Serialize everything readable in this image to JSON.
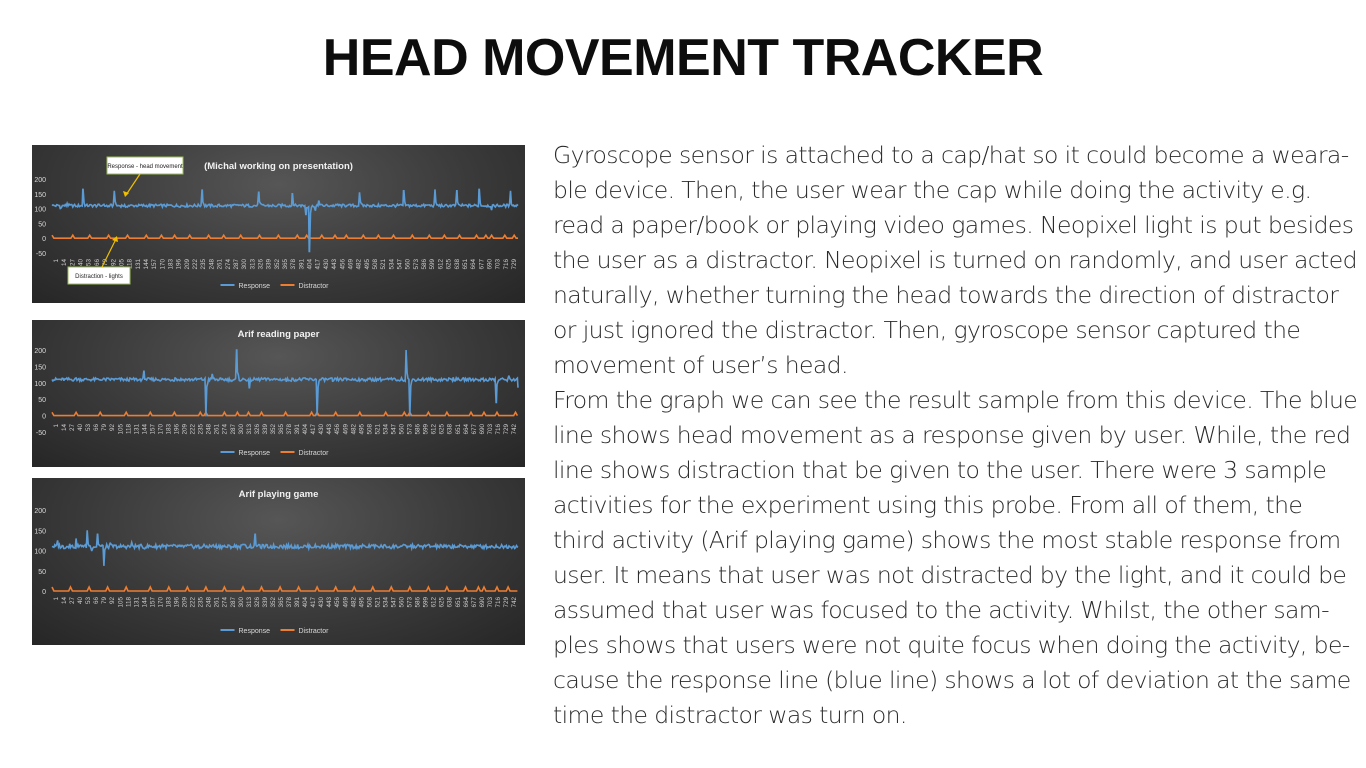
{
  "slide": {
    "title": "HEAD MOVEMENT TRACKER",
    "paragraph_lines": [
      "Gyroscope sensor is attached to a cap/hat so it could become a weara-",
      "ble device. Then, the user wear the cap while doing the activity e.g.",
      "read a paper/book or playing video games. Neopixel light is put besides",
      "the user as a distractor. Neopixel is turned on randomly, and user acted",
      "naturally, whether turning the head towards the direction of distractor",
      "or just ignored the distractor. Then, gyroscope sensor captured the",
      "movement of user’s head.",
      "From the graph we can see the result sample from this device. The blue",
      "line shows head movement as a response given by user. While, the red",
      "line shows distraction that be given to the user. There were 3 sample",
      "activities for the experiment using this probe. From all of them, the",
      "third activity (Arif playing game) shows the most stable response from",
      "user. It means that user was not distracted by the light, and it could be",
      "assumed that user was focused to the activity. Whilst, the other sam-",
      "ples shows that users were not quite focus when doing the activity, be-",
      "cause the response line (blue line) shows a lot of deviation at the same",
      "time the distractor was turn on."
    ]
  },
  "chart_data": [
    {
      "type": "line",
      "title": "(Michal working on presentation)",
      "yticks": [
        200,
        150,
        100,
        50,
        0,
        -50
      ],
      "ylim": [
        -50,
        200
      ],
      "x_range": [
        1,
        742
      ],
      "xtick_labels": [
        "1",
        "14",
        "27",
        "40",
        "53",
        "66",
        "79",
        "92",
        "105",
        "118",
        "131",
        "144",
        "157",
        "170",
        "183",
        "196",
        "209",
        "222",
        "235",
        "248",
        "261",
        "274",
        "287",
        "300",
        "313",
        "326",
        "339",
        "352",
        "365",
        "378",
        "391",
        "404",
        "417",
        "430",
        "443",
        "456",
        "469",
        "482",
        "495",
        "508",
        "521",
        "534",
        "547",
        "560",
        "573",
        "586",
        "599",
        "612",
        "625",
        "638",
        "651",
        "664",
        "677",
        "690",
        "703",
        "716",
        "729"
      ],
      "series": [
        {
          "name": "Response",
          "color": "#5b9bd5",
          "baseline": 110,
          "x": [
            1,
            14,
            25,
            40,
            50,
            82,
            90,
            100,
            112,
            118,
            130,
            160,
            200,
            235,
            240,
            262,
            275,
            300,
            330,
            355,
            370,
            383,
            395,
            405,
            410,
            415,
            420,
            425,
            440,
            455,
            470,
            490,
            505,
            515,
            530,
            560,
            600,
            610,
            625,
            645,
            655,
            680,
            700,
            718,
            730,
            742
          ],
          "y": [
            110,
            100,
            118,
            108,
            165,
            112,
            106,
            160,
            112,
            105,
            110,
            112,
            108,
            110,
            162,
            108,
            110,
            112,
            155,
            108,
            110,
            150,
            112,
            80,
            -45,
            110,
            95,
            125,
            108,
            115,
            110,
            155,
            110,
            108,
            112,
            160,
            112,
            165,
            108,
            160,
            110,
            165,
            95,
            110,
            160,
            110
          ]
        },
        {
          "name": "Distractor",
          "color": "#ed7d31",
          "baseline": 0,
          "spike_x": [
            1,
            35,
            60,
            90,
            120,
            150,
            175,
            195,
            220,
            250,
            275,
            300,
            330,
            360,
            390,
            405,
            430,
            450,
            470,
            495,
            520,
            545,
            575,
            600,
            625,
            650,
            675,
            690,
            700,
            720,
            735
          ],
          "spike_value": 10
        }
      ],
      "legend": {
        "placement": "bottom",
        "entries": [
          "Response",
          "Distractor"
        ]
      },
      "annotations": [
        "Response - head movement",
        "Distraction - lights"
      ]
    },
    {
      "type": "line",
      "title": "Arif reading paper",
      "yticks": [
        200,
        150,
        100,
        50,
        0,
        -50
      ],
      "ylim": [
        -50,
        200
      ],
      "x_range": [
        1,
        755
      ],
      "xtick_labels": [
        "1",
        "14",
        "27",
        "40",
        "53",
        "66",
        "79",
        "92",
        "105",
        "118",
        "131",
        "144",
        "157",
        "170",
        "183",
        "196",
        "209",
        "222",
        "235",
        "248",
        "261",
        "274",
        "287",
        "300",
        "313",
        "326",
        "339",
        "352",
        "365",
        "378",
        "391",
        "404",
        "417",
        "430",
        "443",
        "456",
        "469",
        "482",
        "495",
        "508",
        "521",
        "534",
        "547",
        "560",
        "573",
        "586",
        "599",
        "612",
        "625",
        "638",
        "651",
        "664",
        "677",
        "690",
        "703",
        "716",
        "729",
        "742"
      ],
      "series": [
        {
          "name": "Response",
          "color": "#5b9bd5",
          "baseline": 110,
          "x": [
            1,
            20,
            40,
            60,
            80,
            100,
            120,
            140,
            150,
            170,
            200,
            220,
            240,
            250,
            260,
            275,
            290,
            300,
            320,
            340,
            355,
            380,
            400,
            410,
            430,
            455,
            480,
            500,
            530,
            560,
            574,
            580,
            600,
            620,
            650,
            690,
            700,
            720,
            740,
            755
          ],
          "y": [
            110,
            108,
            115,
            110,
            108,
            112,
            110,
            108,
            135,
            110,
            115,
            108,
            112,
            -2,
            125,
            110,
            108,
            200,
            85,
            115,
            110,
            105,
            110,
            115,
            0,
            105,
            112,
            108,
            112,
            108,
            200,
            -2,
            112,
            108,
            115,
            110,
            105,
            40,
            120,
            85
          ]
        },
        {
          "name": "Distractor",
          "color": "#ed7d31",
          "baseline": 0,
          "spike_x": [
            1,
            40,
            80,
            120,
            160,
            200,
            240,
            250,
            280,
            300,
            320,
            340,
            380,
            420,
            430,
            460,
            500,
            540,
            570,
            580,
            610,
            640,
            680,
            700,
            720,
            750
          ],
          "spike_value": 10
        }
      ],
      "legend": {
        "placement": "bottom",
        "entries": [
          "Response",
          "Distractor"
        ]
      }
    },
    {
      "type": "line",
      "title": "Arif playing game",
      "yticks": [
        200,
        150,
        100,
        50,
        0
      ],
      "ylim": [
        0,
        200
      ],
      "x_range": [
        1,
        755
      ],
      "xtick_labels": [
        "1",
        "14",
        "27",
        "40",
        "53",
        "66",
        "79",
        "92",
        "105",
        "118",
        "131",
        "144",
        "157",
        "170",
        "183",
        "196",
        "209",
        "222",
        "235",
        "248",
        "261",
        "274",
        "287",
        "300",
        "313",
        "326",
        "339",
        "352",
        "365",
        "378",
        "391",
        "404",
        "417",
        "430",
        "443",
        "456",
        "469",
        "482",
        "495",
        "508",
        "521",
        "534",
        "547",
        "560",
        "573",
        "586",
        "599",
        "612",
        "625",
        "638",
        "651",
        "664",
        "677",
        "690",
        "703",
        "716",
        "729",
        "742"
      ],
      "series": [
        {
          "name": "Response",
          "color": "#5b9bd5",
          "baseline": 110,
          "x": [
            1,
            10,
            20,
            30,
            40,
            50,
            58,
            65,
            75,
            85,
            95,
            110,
            130,
            150,
            180,
            210,
            240,
            260,
            285,
            310,
            330,
            350,
            370,
            400,
            430,
            460,
            490,
            520,
            550,
            580,
            610,
            640,
            670,
            700,
            730,
            755
          ],
          "y": [
            110,
            125,
            105,
            115,
            130,
            112,
            150,
            100,
            140,
            62,
            118,
            108,
            120,
            105,
            115,
            110,
            105,
            112,
            108,
            115,
            140,
            108,
            112,
            105,
            110,
            115,
            108,
            112,
            105,
            110,
            115,
            108,
            112,
            105,
            110,
            108
          ]
        },
        {
          "name": "Distractor",
          "color": "#ed7d31",
          "baseline": 0,
          "spike_x": [
            1,
            30,
            60,
            90,
            120,
            160,
            190,
            220,
            250,
            280,
            310,
            340,
            370,
            400,
            430,
            460,
            490,
            520,
            550,
            580,
            610,
            640,
            670,
            690,
            700,
            720,
            740
          ],
          "spike_value": 10
        }
      ],
      "legend": {
        "placement": "bottom",
        "entries": [
          "Response",
          "Distractor"
        ]
      }
    }
  ]
}
